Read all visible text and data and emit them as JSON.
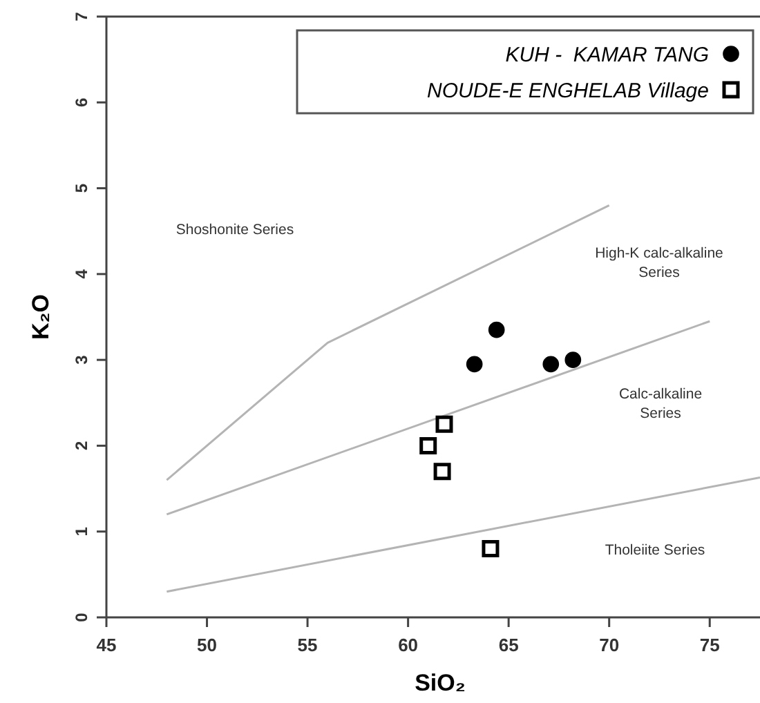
{
  "chart_data": {
    "type": "scatter",
    "xlabel": "SiO₂",
    "ylabel": "K₂O",
    "xlim": [
      45,
      77.5
    ],
    "xticks": [
      45,
      50,
      55,
      60,
      65,
      70,
      75
    ],
    "ylim": [
      0,
      7
    ],
    "yticks": [
      0,
      1,
      2,
      3,
      4,
      5,
      6,
      7
    ],
    "legend": "top right",
    "grid": false,
    "series": [
      {
        "type": "line",
        "color": "#b4b4b4",
        "marker": "none",
        "x": [
          48,
          77.5
        ],
        "values": [
          0.3,
          1.63
        ]
      },
      {
        "type": "line",
        "color": "#b4b4b4",
        "marker": "none",
        "x": [
          48,
          75
        ],
        "values": [
          1.2,
          3.45
        ]
      },
      {
        "type": "line",
        "color": "#b4b4b4",
        "marker": "none",
        "x": [
          48,
          56,
          70
        ],
        "values": [
          1.6,
          3.2,
          4.8
        ]
      },
      {
        "name": "KUH -  KAMAR TANG",
        "color": "#000000",
        "marker": "circle",
        "x": [
          63.3,
          64.4,
          67.1,
          68.2
        ],
        "values": [
          2.95,
          3.35,
          2.95,
          3.0
        ]
      },
      {
        "name": "NOUDE-E ENGHELAB Village",
        "color": "#000000",
        "marker": "square",
        "x": [
          61.8,
          61.0,
          61.7,
          64.1
        ],
        "values": [
          2.25,
          2.0,
          1.7,
          0.8
        ]
      }
    ],
    "annotations": [
      "Shoshonite Series",
      "High-K calc-alkaline\nSeries",
      "Calc-alkaline\nSeries",
      "Tholeiite Series"
    ]
  }
}
